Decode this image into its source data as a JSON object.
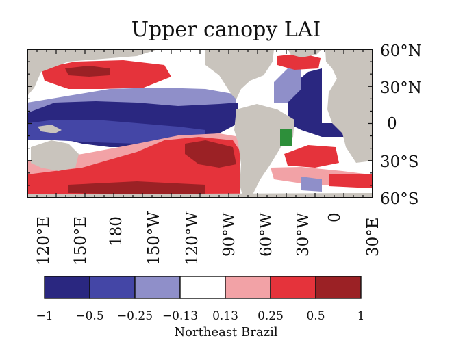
{
  "map": {
    "title": "Upper canopy LAI",
    "lat_labels": [
      "60°N",
      "30°N",
      "0",
      "30°S",
      "60°S"
    ],
    "lon_labels": [
      "120°E",
      "150°E",
      "180",
      "150°W",
      "120°W",
      "90°W",
      "60°W",
      "30°W",
      "0",
      "30°E"
    ],
    "colors": {
      "land": "#c9c4bd",
      "neg_strong": "#2a2780",
      "neg_mid": "#4446a6",
      "neg_weak": "#8f8fc9",
      "neutral": "#ffffff",
      "pos_weak": "#f2a2a6",
      "pos_mid": "#e5333b",
      "pos_strong": "#9b2125",
      "region_marker": "#2d8f3a"
    }
  },
  "colorbar": {
    "tick_labels": [
      "−1",
      "−0.5",
      "−0.25",
      "−0.13",
      "0.13",
      "0.25",
      "0.5",
      "1"
    ],
    "colors": [
      "#2a2780",
      "#4446a6",
      "#8f8fc9",
      "#ffffff",
      "#f2a2a6",
      "#e5333b",
      "#9b2125"
    ],
    "caption": "Northeast Brazil"
  }
}
